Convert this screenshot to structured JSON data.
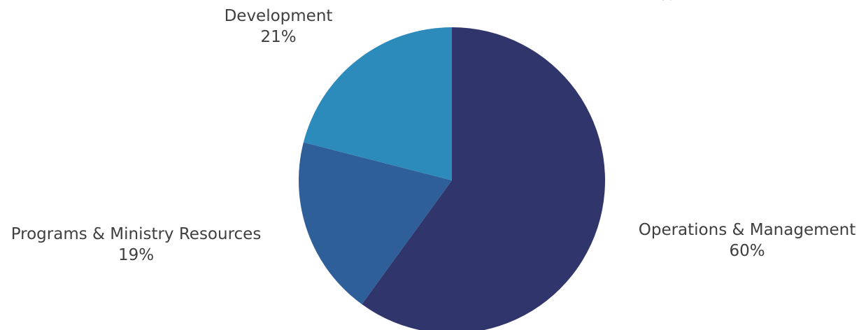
{
  "chart_data": {
    "type": "pie",
    "slices": [
      {
        "label": "Operations & Management",
        "value": 60,
        "value_label": "60%",
        "color": "#30356b"
      },
      {
        "label": "Programs & Ministry Resources",
        "value": 19,
        "value_label": "19%",
        "color": "#2e5f98"
      },
      {
        "label": "Development",
        "value": 21,
        "value_label": "21%",
        "color": "#2d8bbb"
      }
    ],
    "start_angle_deg": 0,
    "direction": "clockwise",
    "cut_off_label": "21%"
  }
}
